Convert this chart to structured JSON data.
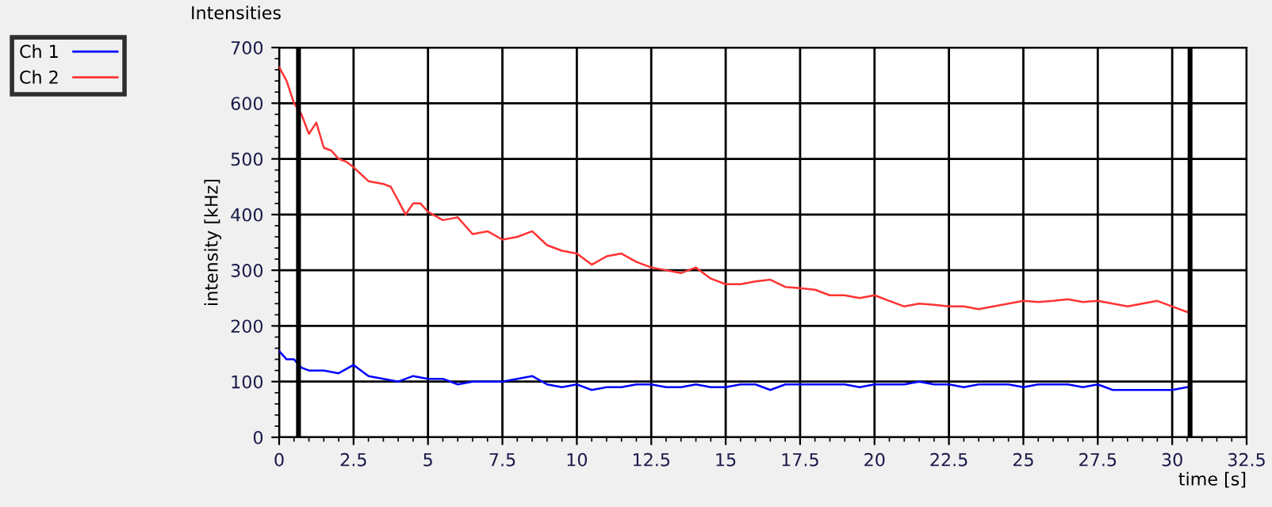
{
  "chart_data": {
    "type": "line",
    "title": "Intensities",
    "xlabel": "time [s]",
    "ylabel": "intensity [kHz]",
    "xlim": [
      0,
      32.5
    ],
    "xticks": [
      0,
      2.5,
      5,
      7.5,
      10,
      12.5,
      15,
      17.5,
      20,
      22.5,
      25,
      27.5,
      30,
      32.5
    ],
    "ylim": [
      0,
      700
    ],
    "yticks": [
      0,
      100,
      200,
      300,
      400,
      500,
      600,
      700
    ],
    "grid": true,
    "legend": "top left",
    "marker": "none",
    "line_style": "solid",
    "ref_lines": [
      {
        "axis": "x",
        "value": 0.65,
        "color": "#000000"
      },
      {
        "axis": "x",
        "value": 30.6,
        "color": "#000000"
      }
    ],
    "series": [
      {
        "name": "Ch 1",
        "color": "#0000ff",
        "x": [
          0,
          0.25,
          0.5,
          0.75,
          1,
          1.5,
          2,
          2.5,
          3,
          3.5,
          4,
          4.5,
          5,
          5.5,
          6,
          6.5,
          7,
          7.5,
          8,
          8.5,
          9,
          9.5,
          10,
          10.5,
          11,
          11.5,
          12,
          12.5,
          13,
          13.5,
          14,
          14.5,
          15,
          15.5,
          16,
          16.5,
          17,
          17.5,
          18,
          18.5,
          19,
          19.5,
          20,
          20.5,
          21,
          21.5,
          22,
          22.5,
          23,
          23.5,
          24,
          24.5,
          25,
          25.5,
          26,
          26.5,
          27,
          27.5,
          28,
          28.5,
          29,
          29.5,
          30,
          30.5
        ],
        "values": [
          155,
          140,
          140,
          125,
          120,
          120,
          115,
          130,
          110,
          105,
          100,
          110,
          105,
          105,
          95,
          100,
          100,
          100,
          105,
          110,
          95,
          90,
          95,
          85,
          90,
          90,
          95,
          95,
          90,
          90,
          95,
          90,
          90,
          95,
          95,
          85,
          95,
          95,
          95,
          95,
          95,
          90,
          95,
          95,
          95,
          100,
          95,
          95,
          90,
          95,
          95,
          95,
          90,
          95,
          95,
          95,
          90,
          95,
          85,
          85,
          85,
          85,
          85,
          90
        ]
      },
      {
        "name": "Ch 2",
        "color": "#ff3333",
        "x": [
          0,
          0.25,
          0.5,
          0.75,
          1,
          1.25,
          1.5,
          1.75,
          2,
          2.25,
          2.5,
          3,
          3.5,
          3.75,
          4,
          4.25,
          4.5,
          4.75,
          5,
          5.5,
          6,
          6.5,
          7,
          7.5,
          8,
          8.5,
          9,
          9.5,
          10,
          10.5,
          11,
          11.5,
          12,
          12.5,
          13,
          13.5,
          14,
          14.5,
          15,
          15.5,
          16,
          16.5,
          17,
          17.5,
          18,
          18.5,
          19,
          19.5,
          20,
          20.5,
          21,
          21.5,
          22,
          22.5,
          23,
          23.5,
          24,
          24.5,
          25,
          25.5,
          26,
          26.5,
          27,
          27.5,
          28,
          28.5,
          29,
          29.5,
          30,
          30.5
        ],
        "values": [
          665,
          640,
          600,
          580,
          545,
          565,
          520,
          515,
          500,
          495,
          485,
          460,
          455,
          450,
          425,
          400,
          420,
          420,
          405,
          390,
          395,
          365,
          370,
          355,
          360,
          370,
          345,
          335,
          330,
          310,
          325,
          330,
          315,
          305,
          300,
          295,
          305,
          285,
          275,
          275,
          280,
          283,
          270,
          268,
          265,
          255,
          255,
          250,
          255,
          245,
          235,
          240,
          238,
          235,
          235,
          230,
          235,
          240,
          245,
          243,
          245,
          248,
          243,
          245,
          240,
          235,
          240,
          245,
          235,
          225
        ]
      }
    ]
  }
}
